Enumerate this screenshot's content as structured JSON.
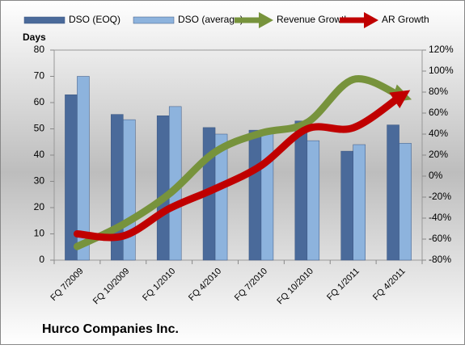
{
  "chart_data": {
    "type": "bar-line",
    "title": "Hurco Companies Inc.",
    "y_label": "Days",
    "categories": [
      "FQ 7/2009",
      "FQ 10/2009",
      "FQ 1/2010",
      "FQ 4/2010",
      "FQ 7/2010",
      "FQ 10/2010",
      "FQ 1/2011",
      "FQ 4/2011"
    ],
    "series": [
      {
        "name": "DSO (EOQ)",
        "color": "#4a6a9a",
        "type": "bar",
        "values": [
          63,
          55.5,
          55,
          50.5,
          49.5,
          53,
          41.5,
          51.5
        ]
      },
      {
        "name": "DSO (average)",
        "color": "#8db3dd",
        "type": "bar",
        "values": [
          70,
          53.5,
          58.5,
          48,
          49,
          45.5,
          44,
          44.5
        ]
      },
      {
        "name": "Revenue Growth",
        "color": "#77933c",
        "type": "line",
        "axis": "y2",
        "values": [
          -67,
          -46,
          -17,
          23,
          41,
          51,
          92,
          77
        ]
      },
      {
        "name": "AR Growth",
        "color": "#c00000",
        "type": "line",
        "axis": "y2",
        "values": [
          -55,
          -57,
          -31,
          -12,
          10,
          45,
          46,
          75
        ]
      }
    ],
    "ylim": [
      0,
      80
    ],
    "yticks": [
      0,
      10,
      20,
      30,
      40,
      50,
      60,
      70,
      80
    ],
    "y2lim": [
      -80,
      120
    ],
    "y2ticks": [
      {
        "value": -80,
        "label": "-80%"
      },
      {
        "value": -60,
        "label": "-60%"
      },
      {
        "value": -40,
        "label": "-40%"
      },
      {
        "value": -20,
        "label": "-20%"
      },
      {
        "value": 0,
        "label": "0%"
      },
      {
        "value": 20,
        "label": "20%"
      },
      {
        "value": 40,
        "label": "40%"
      },
      {
        "value": 60,
        "label": "60%"
      },
      {
        "value": 80,
        "label": "80%"
      },
      {
        "value": 100,
        "label": "100%"
      },
      {
        "value": 120,
        "label": "120%"
      }
    ],
    "grid": true
  }
}
